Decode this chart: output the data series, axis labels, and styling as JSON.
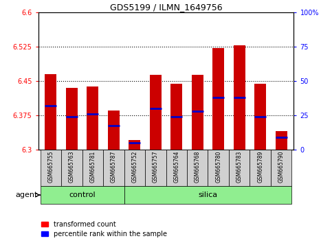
{
  "title": "GDS5199 / ILMN_1649756",
  "samples": [
    "GSM665755",
    "GSM665763",
    "GSM665781",
    "GSM665787",
    "GSM665752",
    "GSM665757",
    "GSM665764",
    "GSM665768",
    "GSM665780",
    "GSM665783",
    "GSM665789",
    "GSM665790"
  ],
  "groups": [
    "control",
    "control",
    "control",
    "control",
    "silica",
    "silica",
    "silica",
    "silica",
    "silica",
    "silica",
    "silica",
    "silica"
  ],
  "bar_top": [
    6.465,
    6.435,
    6.438,
    6.385,
    6.32,
    6.463,
    6.443,
    6.463,
    6.522,
    6.527,
    6.443,
    6.34
  ],
  "bar_bottom": 6.3,
  "percentile_pos": [
    6.395,
    6.372,
    6.378,
    6.352,
    6.315,
    6.39,
    6.372,
    6.383,
    6.413,
    6.413,
    6.372,
    6.327
  ],
  "ylim_left": [
    6.3,
    6.6
  ],
  "yticks_left": [
    6.3,
    6.375,
    6.45,
    6.525,
    6.6
  ],
  "ytick_labels_left": [
    "6.3",
    "6.375",
    "6.45",
    "6.525",
    "6.6"
  ],
  "ylim_right": [
    0,
    100
  ],
  "yticks_right": [
    0,
    25,
    50,
    75,
    100
  ],
  "ytick_labels_right": [
    "0",
    "25",
    "50",
    "75",
    "100%"
  ],
  "grid_lines": [
    6.375,
    6.45,
    6.525
  ],
  "bar_color": "#cc0000",
  "percentile_color": "#0000cc",
  "group_row_color": "#90EE90",
  "sample_box_color": "#d0d0d0",
  "bar_width": 0.55,
  "legend_red": "transformed count",
  "legend_blue": "percentile rank within the sample"
}
